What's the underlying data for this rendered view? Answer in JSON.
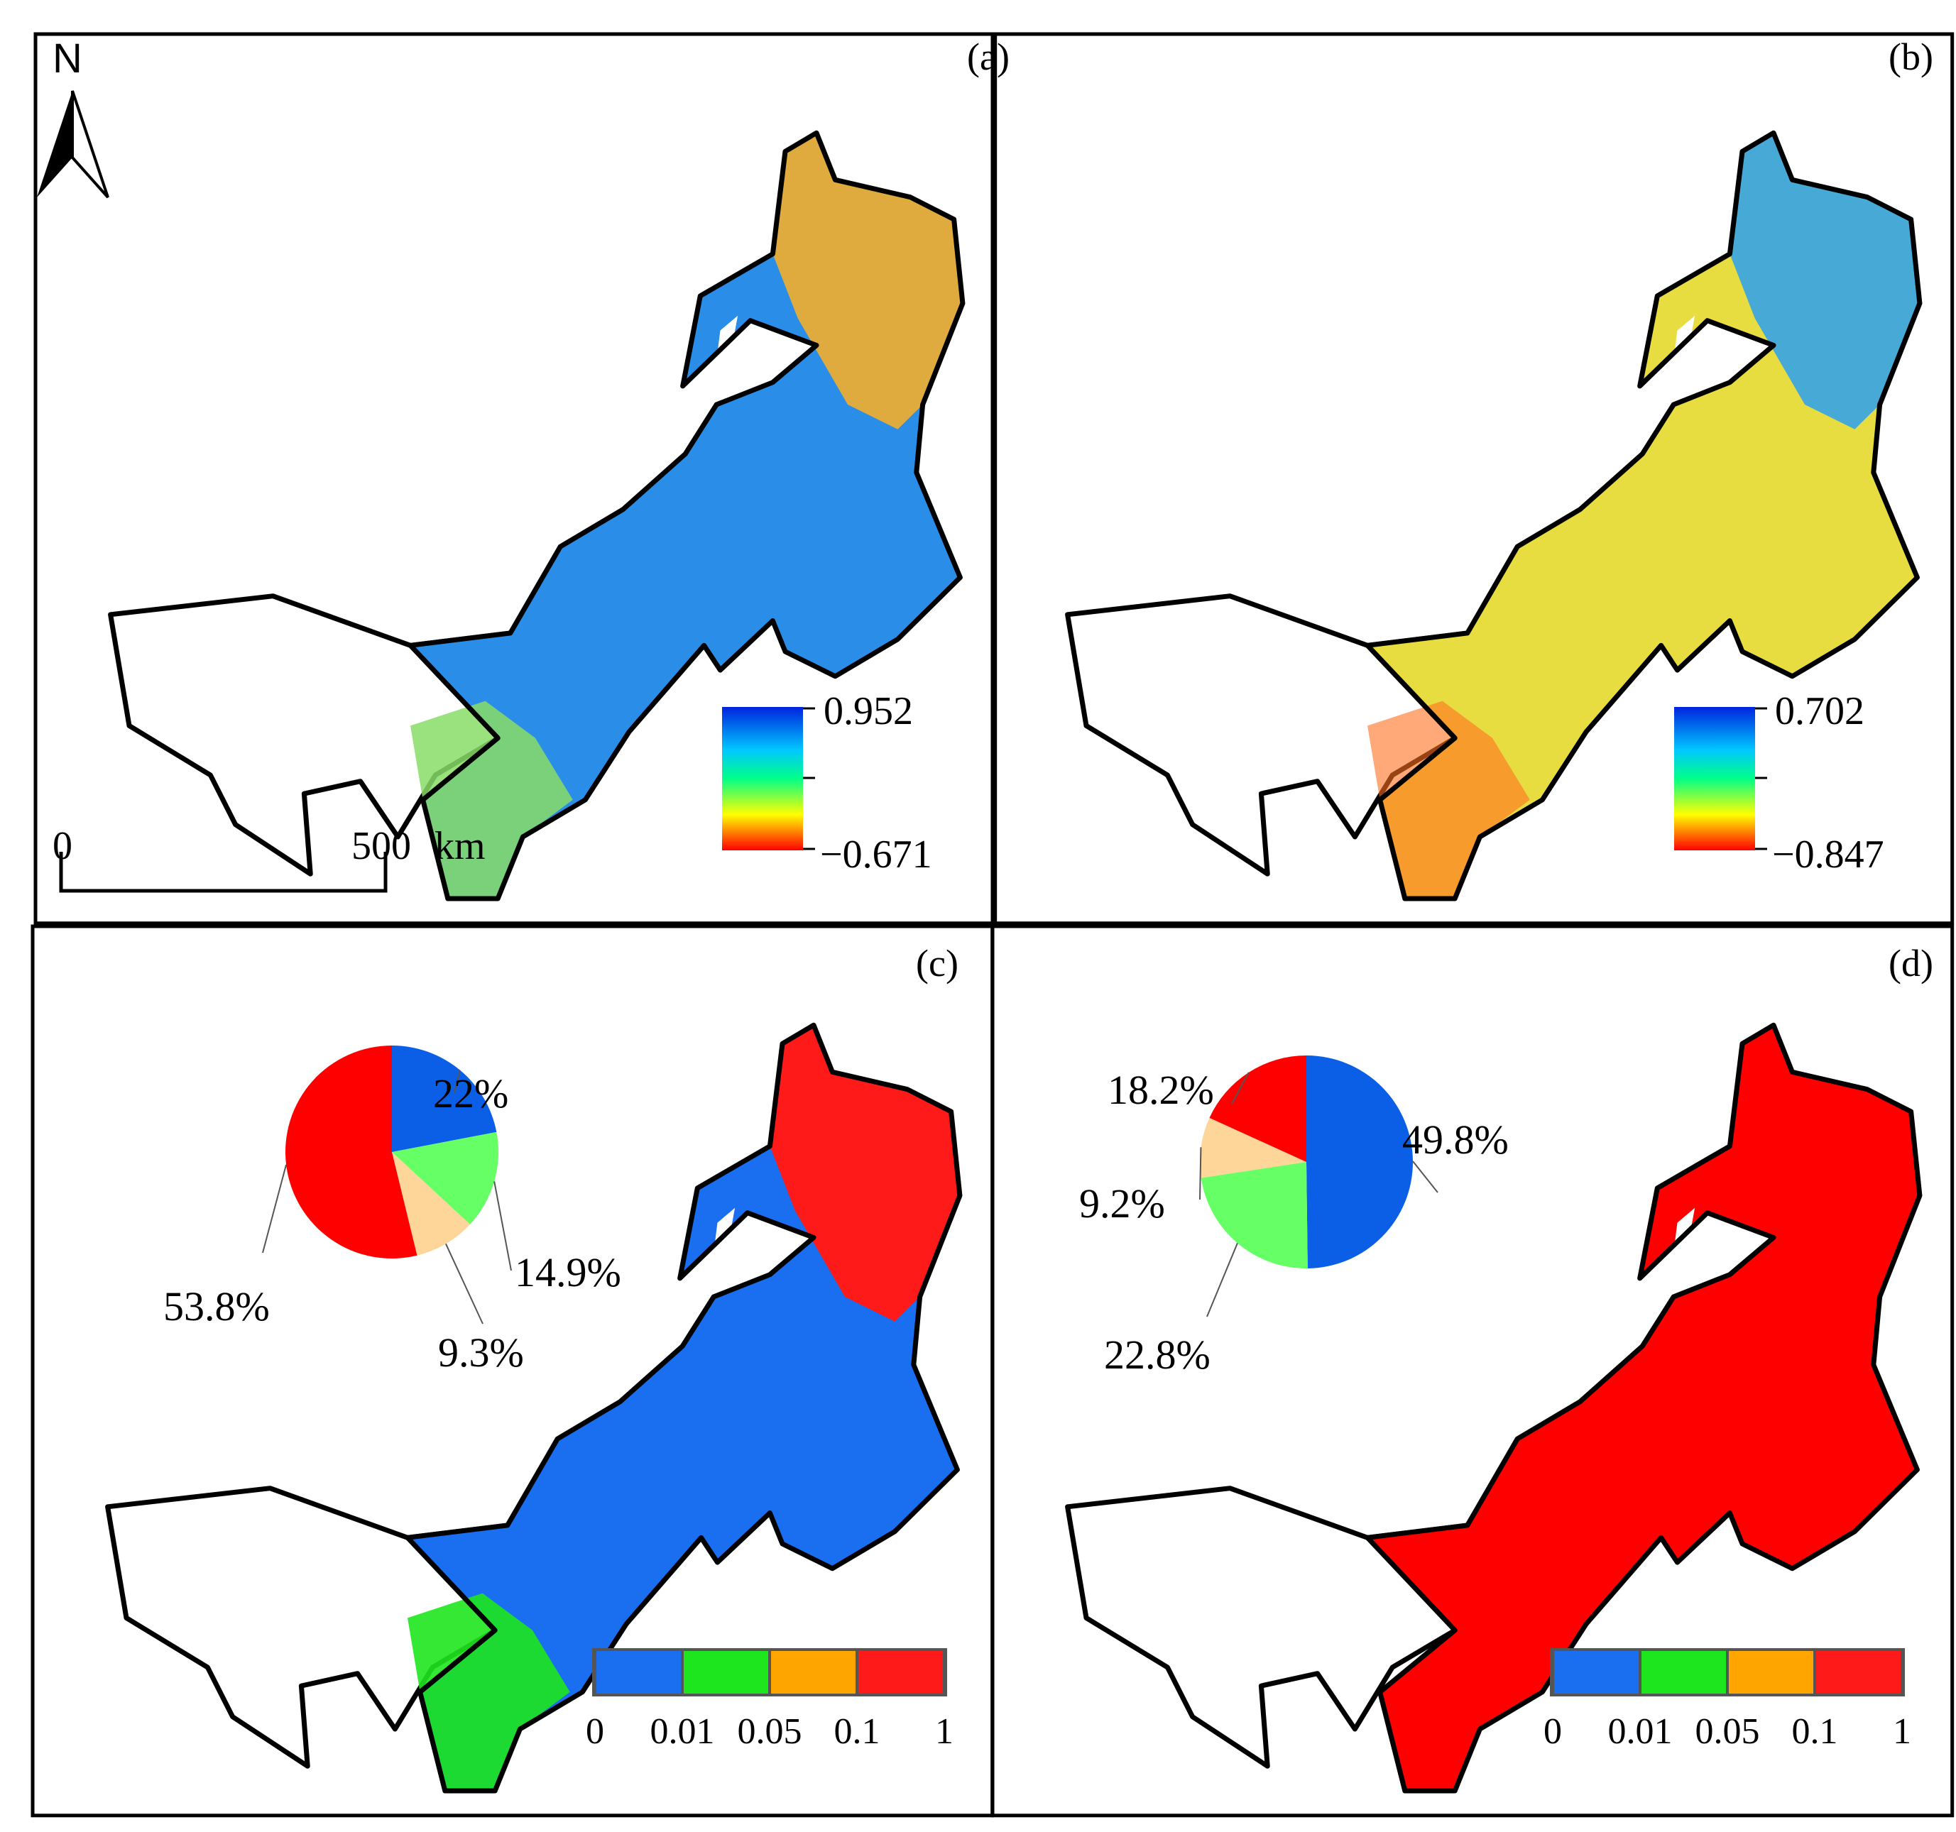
{
  "panels": {
    "a": {
      "label": "(a)",
      "colorbar": {
        "max": "0.952",
        "min": "−0.671"
      }
    },
    "b": {
      "label": "(b)",
      "colorbar": {
        "max": "0.702",
        "min": "−0.847"
      }
    },
    "c": {
      "label": "(c)",
      "pie": [
        {
          "label": "22%",
          "value": 22.0,
          "color": "#0a5fe6"
        },
        {
          "label": "14.9%",
          "value": 14.9,
          "color": "#66ff66"
        },
        {
          "label": "9.3%",
          "value": 9.3,
          "color": "#ffd699"
        },
        {
          "label": "53.8%",
          "value": 53.8,
          "color": "#ff0000"
        }
      ]
    },
    "d": {
      "label": "(d)",
      "pie": [
        {
          "label": "49.8%",
          "value": 49.8,
          "color": "#0a5fe6"
        },
        {
          "label": "22.8%",
          "value": 22.8,
          "color": "#66ff66"
        },
        {
          "label": "9.2%",
          "value": 9.2,
          "color": "#ffd699"
        },
        {
          "label": "18.2%",
          "value": 18.2,
          "color": "#ff0000"
        }
      ]
    }
  },
  "north_arrow": {
    "label": "N"
  },
  "scale_bar": {
    "start": "0",
    "end": "500",
    "unit": "km"
  },
  "class_legend": {
    "ticks": [
      "0",
      "0.01",
      "0.05",
      "0.1",
      "1"
    ],
    "colors": [
      "#1a6ef0",
      "#1ee61e",
      "#ffa500",
      "#ff1a1a"
    ]
  },
  "colorbar_colors": [
    "#0022dd",
    "#00c8ff",
    "#00ff88",
    "#ffff00",
    "#ff0000"
  ],
  "map_colors": {
    "a_base": "#2a8ee8",
    "a_north": "#ffb020",
    "a_south": "#88dd66",
    "b_base": "#e8dd40",
    "b_north": "#2aa0f0",
    "b_south": "#ff7020",
    "c_base": "#1a6ef0",
    "c_north": "#ff1a1a",
    "c_south": "#1ee61e",
    "d_base": "#ff0000"
  }
}
